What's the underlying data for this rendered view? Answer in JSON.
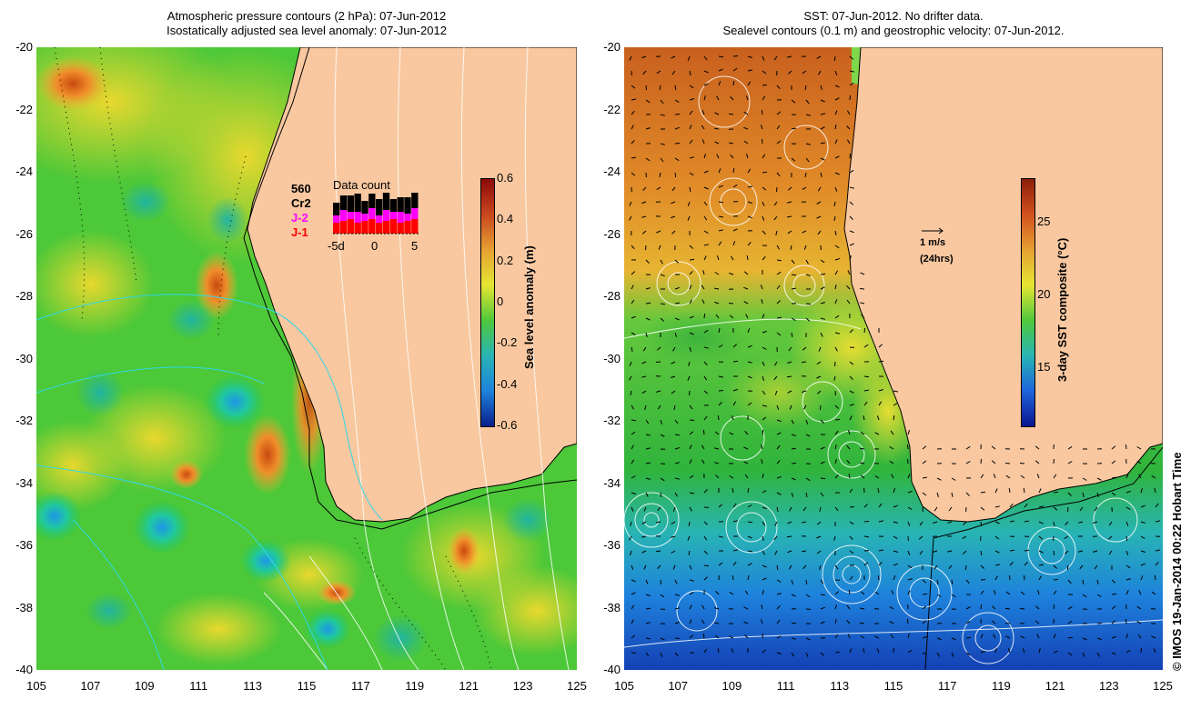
{
  "left_panel": {
    "title_line1": "Atmospheric pressure contours (2 hPa): 07-Jun-2012",
    "title_line2": "Isostatically adjusted sea level anomaly: 07-Jun-2012",
    "y_ticks": [
      "-20",
      "-22",
      "-24",
      "-26",
      "-28",
      "-30",
      "-32",
      "-34",
      "-36",
      "-38",
      "-40"
    ],
    "x_ticks": [
      "105",
      "107",
      "109",
      "111",
      "113",
      "115",
      "117",
      "119",
      "121",
      "123",
      "125"
    ],
    "colorbar": {
      "title": "Sea level anomaly (m)",
      "ticks": [
        "0.6",
        "0.4",
        "0.2",
        "0",
        "-0.2",
        "-0.4",
        "-0.6"
      ],
      "range": [
        -0.6,
        0.6
      ]
    },
    "data_count": {
      "title": "Data count",
      "satellites": {
        "count": "560",
        "cr2": "Cr2",
        "j2": "J-2",
        "j1": "J-1"
      },
      "x_ticks": [
        "-5d",
        "0",
        "5"
      ],
      "colors": {
        "cr2": "#000000",
        "j2": "#ff00ff",
        "j1": "#ff0000"
      }
    }
  },
  "right_panel": {
    "title_line1": "SST: 07-Jun-2012. No drifter data.",
    "title_line2": "Sealevel contours (0.1 m) and geostrophic velocity: 07-Jun-2012.",
    "y_ticks": [
      "-20",
      "-22",
      "-24",
      "-26",
      "-28",
      "-30",
      "-32",
      "-34",
      "-36",
      "-38",
      "-40"
    ],
    "x_ticks": [
      "105",
      "107",
      "109",
      "111",
      "113",
      "115",
      "117",
      "119",
      "121",
      "123",
      "125"
    ],
    "colorbar": {
      "title": "3-day SST composite (°C)",
      "ticks": [
        "25",
        "20",
        "15"
      ],
      "range": [
        11,
        28
      ]
    },
    "velocity_key": {
      "speed": "1 m/s",
      "duration": "(24hrs)"
    }
  },
  "credit": "© IMOS 19-Jan-2014 00:22 Hobart Time",
  "colors": {
    "land": "#f9c8a0",
    "ocean_green": "#3cc832",
    "ocean_yellow": "#e6e632",
    "ocean_orange": "#e6962d",
    "ocean_blue": "#1e8cdc"
  }
}
